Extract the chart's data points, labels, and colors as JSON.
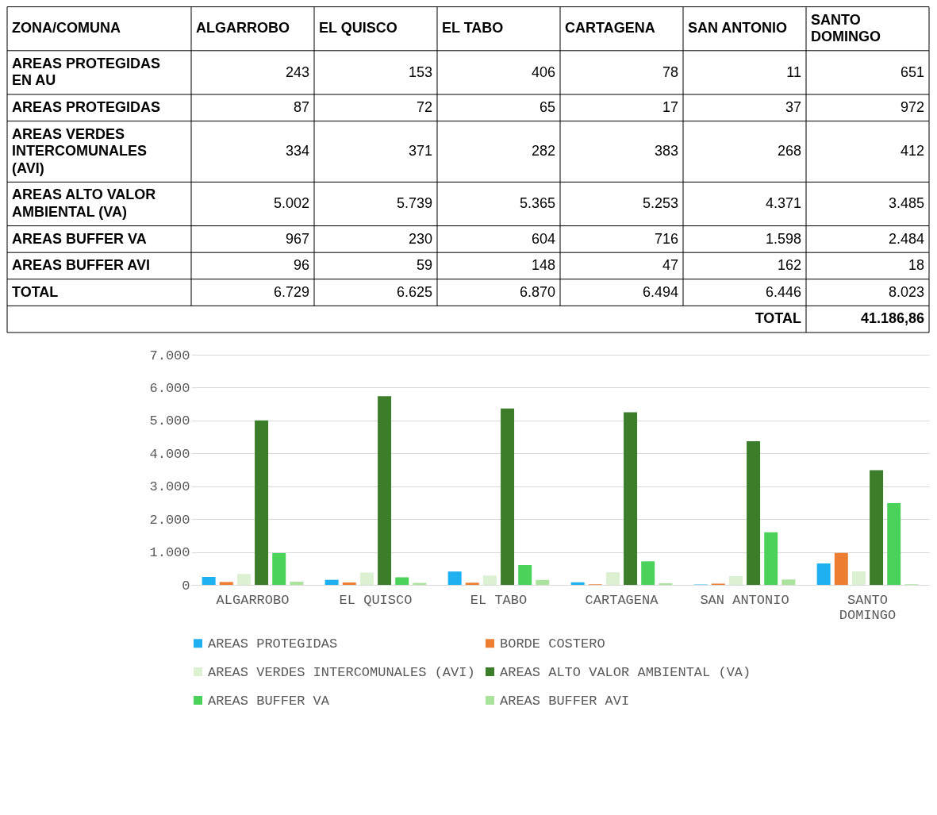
{
  "chart_data": {
    "type": "bar",
    "categories": [
      "ALGARROBO",
      "EL QUISCO",
      "EL TABO",
      "CARTAGENA",
      "SAN ANTONIO",
      "SANTO DOMINGO"
    ],
    "series": [
      {
        "name": "AREAS PROTEGIDAS",
        "color": "#1eb0f0",
        "values": [
          243,
          153,
          406,
          78,
          11,
          651
        ],
        "value_labels": [
          "243",
          "153",
          "406",
          "78",
          "11",
          "651"
        ]
      },
      {
        "name": "BORDE COSTERO",
        "color": "#ed7d31",
        "values": [
          87,
          72,
          65,
          17,
          37,
          972
        ],
        "value_labels": [
          "87",
          "72",
          "65",
          "17",
          "37",
          "972"
        ]
      },
      {
        "name": "AREAS VERDES INTERCOMUNALES (AVI)",
        "color": "#dbf1d2",
        "values": [
          334,
          371,
          282,
          383,
          268,
          412
        ],
        "value_labels": [
          "334",
          "371",
          "282",
          "383",
          "268",
          "412"
        ]
      },
      {
        "name": "AREAS ALTO VALOR AMBIENTAL (VA)",
        "color": "#3b7d29",
        "values": [
          5002,
          5739,
          5365,
          5253,
          4371,
          3485
        ],
        "value_labels": [
          "5.002",
          "5.739",
          "5.365",
          "5.253",
          "4.371",
          "3.485"
        ]
      },
      {
        "name": "AREAS BUFFER VA",
        "color": "#4bd25a",
        "values": [
          967,
          230,
          604,
          716,
          1598,
          2484
        ],
        "value_labels": [
          "967",
          "230",
          "604",
          "716",
          "1.598",
          "2.484"
        ]
      },
      {
        "name": "AREAS BUFFER AVI",
        "color": "#a9e39c",
        "values": [
          96,
          59,
          148,
          47,
          162,
          18
        ],
        "value_labels": [
          "96",
          "59",
          "148",
          "47",
          "162",
          "18"
        ]
      }
    ],
    "annotations": [
      "ZONA/COMUNA",
      "AREAS PROTEGIDAS EN AU",
      "AREAS PROTEGIDAS",
      "AREAS VERDES INTERCOMUNALES (AVI)",
      "AREAS ALTO VALOR AMBIENTAL (VA)",
      "AREAS BUFFER VA",
      "AREAS BUFFER AVI",
      "TOTAL",
      "6.729",
      "6.625",
      "6.870",
      "6.494",
      "6.446",
      "8.023",
      "TOTAL",
      "41.186,86"
    ],
    "ylim": [
      0,
      7000
    ],
    "yticks": [
      {
        "value": 0,
        "label": "0"
      },
      {
        "value": 1000,
        "label": "1.000"
      },
      {
        "value": 2000,
        "label": "2.000"
      },
      {
        "value": 3000,
        "label": "3.000"
      },
      {
        "value": 4000,
        "label": "4.000"
      },
      {
        "value": 5000,
        "label": "5.000"
      },
      {
        "value": 6000,
        "label": "6.000"
      },
      {
        "value": 7000,
        "label": "7.000"
      }
    ],
    "grid": "y",
    "legend": "bottom"
  }
}
